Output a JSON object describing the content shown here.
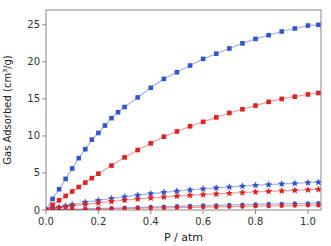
{
  "chart_data": {
    "type": "line",
    "xlabel": "P / atm",
    "ylabel": "Gas Adsorbed (cm³/g)",
    "xlim": [
      0,
      1.05
    ],
    "ylim": [
      0,
      27
    ],
    "xticks": [
      {
        "value": 0.0,
        "label": "0.0"
      },
      0.2,
      0.4,
      0.6,
      0.8,
      {
        "value": 1.0,
        "label": "1.0"
      }
    ],
    "yticks": [
      0,
      5,
      10,
      15,
      20,
      25
    ],
    "grid": false,
    "series": [
      {
        "color": "#3355cc",
        "marker": "square",
        "x": [
          0.0,
          0.025,
          0.05,
          0.075,
          0.1,
          0.125,
          0.15,
          0.175,
          0.2,
          0.225,
          0.25,
          0.275,
          0.3,
          0.35,
          0.4,
          0.45,
          0.5,
          0.55,
          0.6,
          0.65,
          0.7,
          0.75,
          0.8,
          0.85,
          0.9,
          0.95,
          1.0,
          1.04
        ],
        "values": [
          0.0,
          1.5,
          2.8,
          4.2,
          5.6,
          7.0,
          8.2,
          9.5,
          10.4,
          11.4,
          12.4,
          13.2,
          13.9,
          15.2,
          16.5,
          17.7,
          18.6,
          19.5,
          20.4,
          21.1,
          21.8,
          22.5,
          23.1,
          23.6,
          24.1,
          24.5,
          24.9,
          25.0
        ]
      },
      {
        "color": "#dd2222",
        "marker": "square",
        "x": [
          0.0,
          0.025,
          0.05,
          0.075,
          0.1,
          0.125,
          0.15,
          0.175,
          0.2,
          0.25,
          0.3,
          0.35,
          0.4,
          0.45,
          0.5,
          0.55,
          0.6,
          0.65,
          0.7,
          0.75,
          0.8,
          0.85,
          0.9,
          0.95,
          1.0,
          1.04
        ],
        "values": [
          0.0,
          0.7,
          1.3,
          1.9,
          2.5,
          3.1,
          3.7,
          4.3,
          4.9,
          6.0,
          7.1,
          8.1,
          9.0,
          9.9,
          10.6,
          11.3,
          11.9,
          12.5,
          13.1,
          13.6,
          14.1,
          14.6,
          15.0,
          15.3,
          15.6,
          15.8
        ]
      },
      {
        "color": "#3355cc",
        "marker": "star",
        "x": [
          0.0,
          0.025,
          0.05,
          0.075,
          0.1,
          0.15,
          0.2,
          0.25,
          0.3,
          0.35,
          0.4,
          0.45,
          0.5,
          0.55,
          0.6,
          0.65,
          0.7,
          0.75,
          0.8,
          0.85,
          0.9,
          0.95,
          1.0,
          1.04
        ],
        "values": [
          0.0,
          0.2,
          0.38,
          0.55,
          0.72,
          1.05,
          1.3,
          1.55,
          1.78,
          2.0,
          2.2,
          2.38,
          2.55,
          2.7,
          2.85,
          2.98,
          3.1,
          3.22,
          3.32,
          3.42,
          3.52,
          3.6,
          3.68,
          3.75
        ]
      },
      {
        "color": "#dd2222",
        "marker": "star",
        "x": [
          0.0,
          0.025,
          0.05,
          0.075,
          0.1,
          0.15,
          0.2,
          0.25,
          0.3,
          0.35,
          0.4,
          0.45,
          0.5,
          0.55,
          0.6,
          0.65,
          0.7,
          0.75,
          0.8,
          0.85,
          0.9,
          0.95,
          1.0,
          1.04
        ],
        "values": [
          0.0,
          0.15,
          0.28,
          0.4,
          0.52,
          0.77,
          0.97,
          1.15,
          1.32,
          1.48,
          1.62,
          1.75,
          1.87,
          1.98,
          2.08,
          2.17,
          2.26,
          2.35,
          2.43,
          2.51,
          2.59,
          2.65,
          2.72,
          2.78
        ]
      },
      {
        "color": "#3355cc",
        "marker": "circle",
        "x": [
          0.0,
          0.05,
          0.1,
          0.15,
          0.2,
          0.25,
          0.3,
          0.35,
          0.4,
          0.45,
          0.5,
          0.55,
          0.6,
          0.65,
          0.7,
          0.75,
          0.8,
          0.85,
          0.9,
          0.95,
          1.0,
          1.04
        ],
        "values": [
          0.0,
          0.05,
          0.1,
          0.15,
          0.2,
          0.25,
          0.3,
          0.35,
          0.4,
          0.45,
          0.5,
          0.55,
          0.6,
          0.63,
          0.68,
          0.72,
          0.76,
          0.8,
          0.83,
          0.87,
          0.9,
          0.93
        ]
      },
      {
        "color": "#dd2222",
        "marker": "circle",
        "x": [
          0.0,
          0.05,
          0.1,
          0.15,
          0.2,
          0.25,
          0.3,
          0.35,
          0.4,
          0.45,
          0.5,
          0.55,
          0.6,
          0.65,
          0.7,
          0.75,
          0.8,
          0.85,
          0.9,
          0.95,
          1.0,
          1.04
        ],
        "values": [
          0.0,
          0.035,
          0.07,
          0.1,
          0.13,
          0.17,
          0.2,
          0.23,
          0.27,
          0.3,
          0.33,
          0.36,
          0.39,
          0.42,
          0.45,
          0.48,
          0.51,
          0.54,
          0.57,
          0.6,
          0.63,
          0.65
        ]
      }
    ]
  }
}
